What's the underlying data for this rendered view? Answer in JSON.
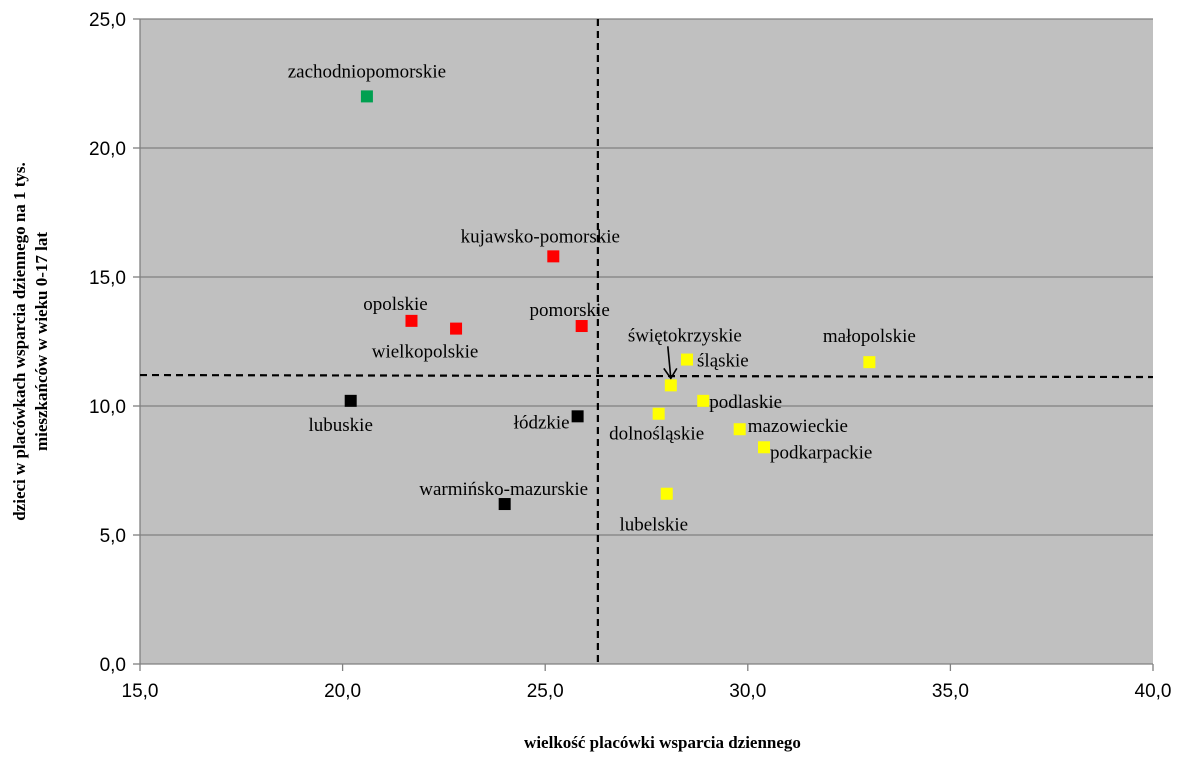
{
  "chart_data": {
    "type": "scatter",
    "title": "",
    "xlabel": "wielkość placówki wsparcia dziennego",
    "ylabel_lines": [
      "dzieci w placówkach wsparcia dziennego na 1 tys.",
      "mieszkańców  w wieku 0-17 lat"
    ],
    "xlim": [
      15,
      40
    ],
    "ylim": [
      0,
      25
    ],
    "x_ticks": [
      "15,0",
      "20,0",
      "25,0",
      "30,0",
      "35,0",
      "40,0"
    ],
    "y_ticks": [
      "0,0",
      "5,0",
      "10,0",
      "15,0",
      "20,0",
      "25,0"
    ],
    "grid": "horizontal",
    "plot_background": "#c0c0c0",
    "reference_lines": {
      "x": 26.3,
      "y": 11.2,
      "style": "dashed"
    },
    "colors": {
      "green": "#00a050",
      "red": "#ff0000",
      "black": "#000000",
      "yellow": "#ffff00"
    },
    "points": [
      {
        "label": "zachodniopomorskie",
        "x": 20.6,
        "y": 22.0,
        "color": "green"
      },
      {
        "label": "kujawsko-pomorskie",
        "x": 25.2,
        "y": 15.8,
        "color": "red"
      },
      {
        "label": "opolskie",
        "x": 21.7,
        "y": 13.3,
        "color": "red"
      },
      {
        "label": "wielkopolskie",
        "x": 22.8,
        "y": 13.0,
        "color": "red"
      },
      {
        "label": "pomorskie",
        "x": 25.9,
        "y": 13.1,
        "color": "red"
      },
      {
        "label": "lubuskie",
        "x": 20.2,
        "y": 10.2,
        "color": "black"
      },
      {
        "label": "łódzkie",
        "x": 25.8,
        "y": 9.6,
        "color": "black"
      },
      {
        "label": "warmińsko-mazurskie",
        "x": 24.0,
        "y": 6.2,
        "color": "black"
      },
      {
        "label": "świętokrzyskie",
        "x": 28.1,
        "y": 10.8,
        "color": "yellow"
      },
      {
        "label": "śląskie",
        "x": 28.5,
        "y": 11.8,
        "color": "yellow"
      },
      {
        "label": "małopolskie",
        "x": 33.0,
        "y": 11.7,
        "color": "yellow"
      },
      {
        "label": "podlaskie",
        "x": 28.9,
        "y": 10.2,
        "color": "yellow"
      },
      {
        "label": "dolnośląskie",
        "x": 27.8,
        "y": 9.7,
        "color": "yellow"
      },
      {
        "label": "mazowieckie",
        "x": 29.8,
        "y": 9.1,
        "color": "yellow"
      },
      {
        "label": "podkarpackie",
        "x": 30.4,
        "y": 8.4,
        "color": "yellow"
      },
      {
        "label": "lubelskie",
        "x": 28.0,
        "y": 6.6,
        "color": "yellow"
      }
    ]
  }
}
